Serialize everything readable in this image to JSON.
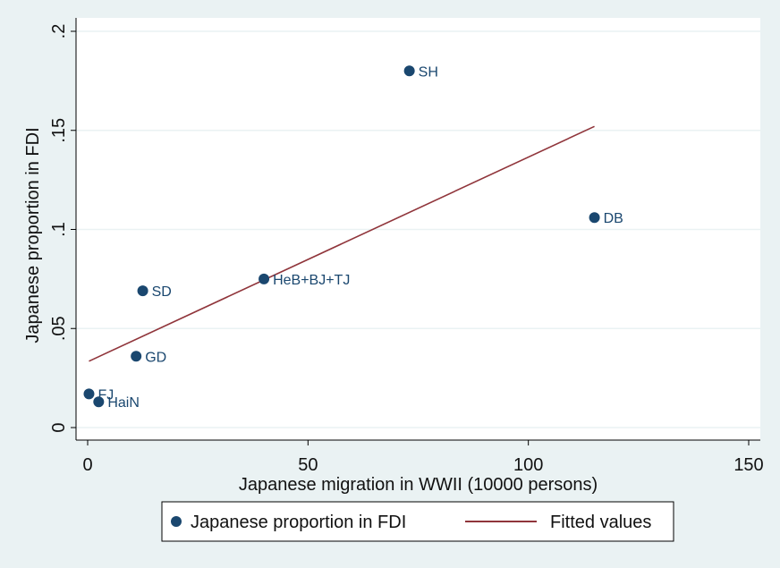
{
  "chart_data": {
    "type": "scatter",
    "xlabel": "Japanese migration in WWII (10000 persons)",
    "ylabel": "Japanese proportion in FDI",
    "xlim": [
      0,
      150
    ],
    "ylim": [
      0,
      0.2
    ],
    "x_ticks": [
      0,
      50,
      100,
      150
    ],
    "x_tick_labels": [
      "0",
      "50",
      "100",
      "150"
    ],
    "y_ticks": [
      0,
      0.05,
      0.1,
      0.15,
      0.2
    ],
    "y_tick_labels": [
      "0",
      ".05",
      ".1",
      ".15",
      ".2"
    ],
    "grid": "horizontal",
    "legend_position": "bottom",
    "series": [
      {
        "name": "Japanese proportion in FDI",
        "kind": "scatter",
        "color": "#1a476f",
        "points": [
          {
            "label": "SH",
            "x": 73,
            "y": 0.18
          },
          {
            "label": "DB",
            "x": 115,
            "y": 0.106
          },
          {
            "label": "HeB+BJ+TJ",
            "x": 40,
            "y": 0.075
          },
          {
            "label": "SD",
            "x": 12.5,
            "y": 0.069
          },
          {
            "label": "GD",
            "x": 11,
            "y": 0.036
          },
          {
            "label": "FJ",
            "x": 0.3,
            "y": 0.017
          },
          {
            "label": "HaiN",
            "x": 2.5,
            "y": 0.013
          }
        ]
      },
      {
        "name": "Fitted values",
        "kind": "line",
        "color": "#90353b",
        "points": [
          {
            "x": 0.3,
            "y": 0.0335
          },
          {
            "x": 115,
            "y": 0.152
          }
        ]
      }
    ]
  }
}
